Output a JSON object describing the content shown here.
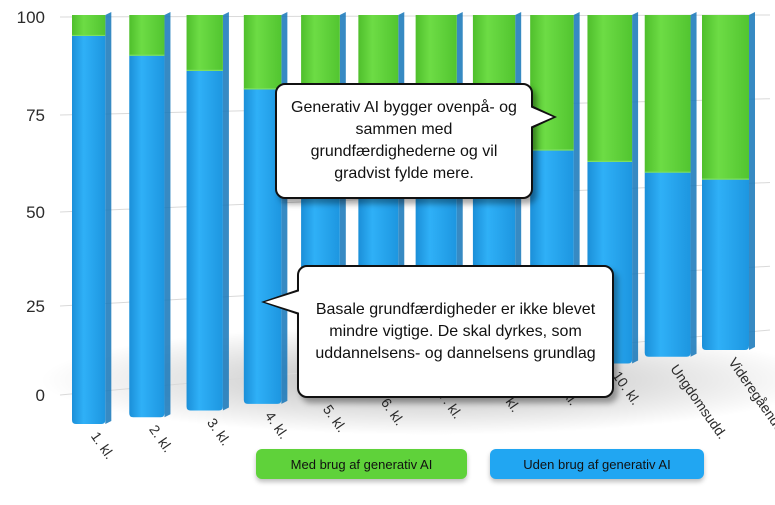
{
  "chart_data": {
    "type": "bar",
    "stacked": true,
    "categories": [
      "1. kl.",
      "2. kl.",
      "3. kl.",
      "4. kl.",
      "5. kl.",
      "6. kl.",
      "7. kl.",
      "8. kl.",
      "9. kl.",
      "10. kl.",
      "Ungdomsudd.",
      "Videregående"
    ],
    "series": [
      {
        "name": "Uden brug af generativ AI",
        "color": "#21a6f2",
        "values": [
          95,
          90,
          86,
          81,
          77,
          73,
          69,
          65,
          62,
          58,
          54,
          51
        ]
      },
      {
        "name": "Med brug af generativ AI",
        "color": "#5fd23a",
        "values": [
          5,
          10,
          14,
          19,
          23,
          27,
          31,
          35,
          38,
          42,
          46,
          49
        ]
      }
    ],
    "yticks": [
      0,
      25,
      50,
      75,
      100
    ],
    "ylim": [
      0,
      100
    ],
    "grid": true,
    "legend": "bottom"
  },
  "annotations": {
    "top": "Generativ AI bygger ovenpå- og sammen med grundfærdighederne og vil gradvist fylde mere.",
    "bottom": "Basale grundfærdigheder er ikke blevet mindre vigtige. De skal dyrkes, som uddannelsens- og dannelsens grundlag"
  },
  "legend": {
    "with_ai": "Med brug af generativ AI",
    "without_ai": "Uden brug af generativ AI"
  }
}
